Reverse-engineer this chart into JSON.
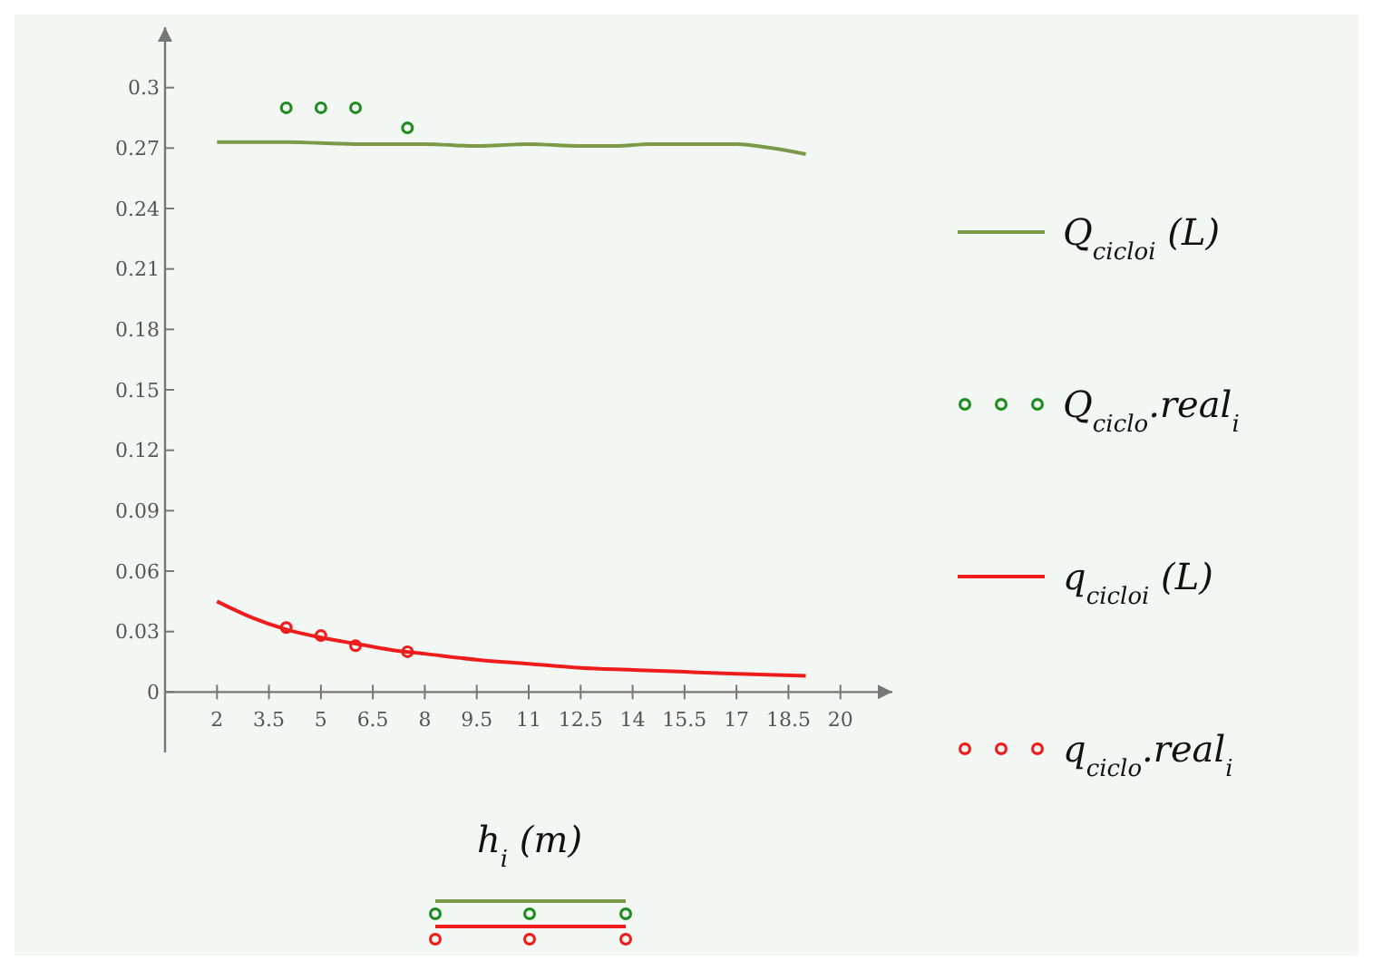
{
  "chart_data": {
    "type": "line",
    "xlabel": "h$_{i}$ (m)",
    "legend": "right",
    "grid": false,
    "xlim": [
      0.5,
      21.5
    ],
    "ylim": [
      -0.03,
      0.33
    ],
    "xticks": [
      2,
      3.5,
      5,
      6.5,
      8,
      9.5,
      11,
      12.5,
      14,
      15.5,
      17,
      18.5,
      20
    ],
    "yticks": [
      0,
      0.03,
      0.06,
      0.09,
      0.12,
      0.15,
      0.18,
      0.21,
      0.24,
      0.27,
      0.3
    ],
    "series": [
      {
        "name": "Q$_{ciclo}$$_{i}$ (L)",
        "color": "#7a9a4a",
        "marker": "none",
        "line_style": "solid",
        "x": [
          2,
          4,
          6,
          8,
          9.5,
          11,
          12.5,
          13.5,
          14.5,
          16,
          17,
          18,
          19
        ],
        "values": [
          0.273,
          0.273,
          0.272,
          0.272,
          0.271,
          0.272,
          0.271,
          0.271,
          0.272,
          0.272,
          0.272,
          0.27,
          0.267
        ]
      },
      {
        "name": "Q$_{ciclo}$.real$_{i}$",
        "type": "scatter",
        "color": "#1e8c1e",
        "marker": "circle",
        "x": [
          4,
          5,
          6,
          7.5
        ],
        "values": [
          0.29,
          0.29,
          0.29,
          0.28
        ]
      },
      {
        "name": "q$_{ciclo}$$_{i}$ (L)",
        "color": "#ee1c1c",
        "marker": "none",
        "line_style": "solid",
        "x": [
          2,
          3,
          4,
          5,
          6,
          7,
          8,
          9.5,
          11,
          12.5,
          14,
          15.5,
          17,
          19
        ],
        "values": [
          0.045,
          0.037,
          0.031,
          0.027,
          0.024,
          0.021,
          0.019,
          0.016,
          0.014,
          0.012,
          0.011,
          0.01,
          0.009,
          0.008
        ]
      },
      {
        "name": "q$_{ciclo}$.real$_{i}$",
        "type": "scatter",
        "color": "#ee1c1c",
        "marker": "circle",
        "x": [
          4,
          5,
          6,
          7.5
        ],
        "values": [
          0.032,
          0.028,
          0.023,
          0.02
        ]
      }
    ]
  }
}
